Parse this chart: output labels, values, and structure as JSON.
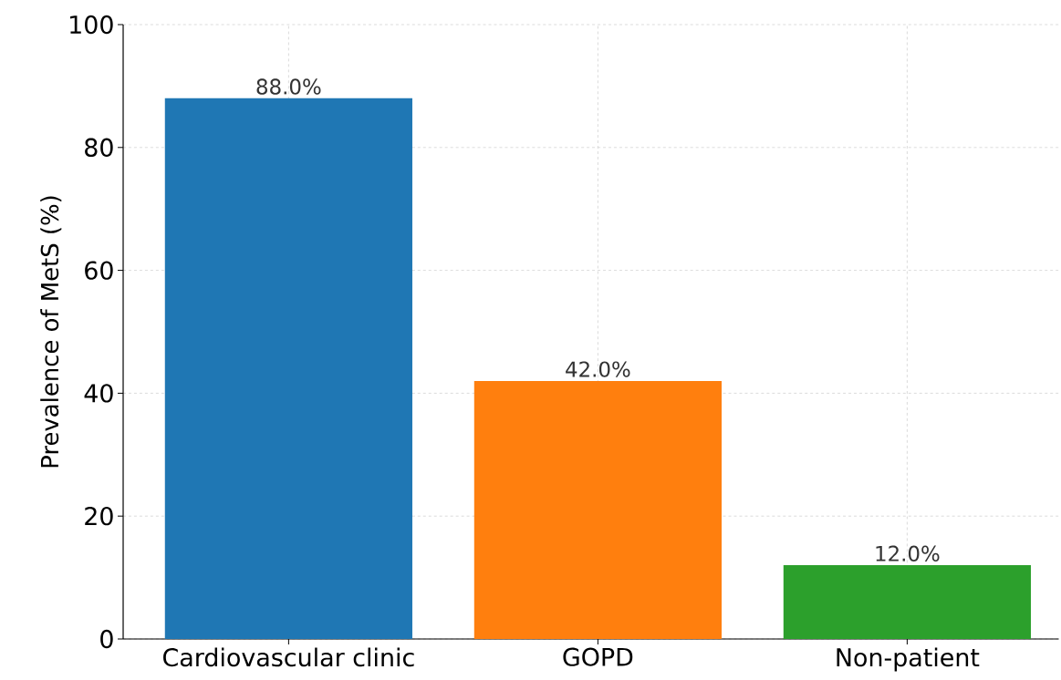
{
  "chart_data": {
    "type": "bar",
    "ylabel": "Prevalence of MetS (%)",
    "categories": [
      "Cardiovascular clinic",
      "GOPD",
      "Non-patient"
    ],
    "values": [
      88,
      42,
      12
    ],
    "colors": [
      "#1f77b4",
      "#ff7f0e",
      "#2ca02c"
    ],
    "value_labels": [
      "88.0%",
      "42.0%",
      "12.0%"
    ],
    "ylim": [
      0,
      100
    ],
    "yticks": [
      0,
      20,
      40,
      60,
      80,
      100
    ],
    "grid": true
  }
}
